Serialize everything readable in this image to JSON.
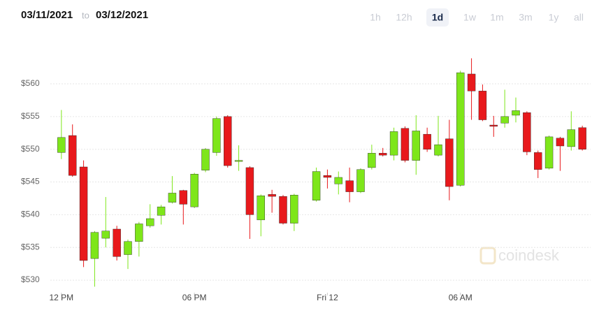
{
  "header": {
    "from": "03/11/2021",
    "to_word": "to",
    "to": "03/12/2021",
    "ranges": [
      {
        "label": "1h"
      },
      {
        "label": "12h"
      },
      {
        "label": "1d",
        "selected": true
      },
      {
        "label": "1w"
      },
      {
        "label": "1m"
      },
      {
        "label": "3m"
      },
      {
        "label": "1y"
      },
      {
        "label": "all"
      }
    ]
  },
  "chart_data": {
    "type": "candlestick",
    "watermark": "coindesk",
    "up_color": "#7ee61a",
    "down_color": "#e8191c",
    "grid": true,
    "ylim": [
      528,
      566
    ],
    "yticks": [
      {
        "value": 530,
        "label": "$530"
      },
      {
        "value": 535,
        "label": "$535"
      },
      {
        "value": 540,
        "label": "$540"
      },
      {
        "value": 545,
        "label": "$545"
      },
      {
        "value": 550,
        "label": "$550"
      },
      {
        "value": 555,
        "label": "$555"
      },
      {
        "value": 560,
        "label": "$560"
      }
    ],
    "xlim": [
      -1,
      48
    ],
    "xticks": [
      {
        "value": 0,
        "label": "12 PM"
      },
      {
        "value": 12,
        "label": "06 PM"
      },
      {
        "value": 24,
        "label": "Fri 12"
      },
      {
        "value": 36,
        "label": "06 AM"
      }
    ],
    "open": [
      549.5,
      552.1,
      547.3,
      533.3,
      536.4,
      537.8,
      533.9,
      535.9,
      538.3,
      539.9,
      541.9,
      543.7,
      541.2,
      546.8,
      549.5,
      555,
      548.3,
      547.2,
      539.2,
      543.1,
      542.8,
      538.7,
      null,
      542.2,
      546,
      544.7,
      545.2,
      543.5,
      547.2,
      549.4,
      549.1,
      553.2,
      548.3,
      552.3,
      549.1,
      551.6,
      544.5,
      561.5,
      558.9,
      553.7,
      554,
      555.2,
      555.6,
      549.5,
      547.1,
      551.7,
      550.4,
      553.3
    ],
    "high": [
      556,
      553.8,
      548.3,
      537.5,
      542.7,
      538.3,
      536.2,
      538.9,
      541.6,
      541.5,
      545.9,
      543.8,
      546.4,
      550.2,
      555,
      555.2,
      550.6,
      547.4,
      543.1,
      543.8,
      543,
      543.2,
      null,
      547.2,
      546.9,
      546.6,
      547.2,
      547.1,
      550.7,
      550.2,
      553.3,
      553.5,
      555.2,
      553.3,
      555.1,
      554.5,
      562,
      563.9,
      559.9,
      555.1,
      559.1,
      557.9,
      555.8,
      549.8,
      552.1,
      551.9,
      555.8,
      553.6
    ],
    "low": [
      548.5,
      545.8,
      532,
      529,
      535,
      533,
      531.7,
      533.6,
      538,
      538.5,
      541.7,
      538.5,
      541,
      546.5,
      549,
      547.2,
      546.7,
      536.3,
      536.7,
      540.3,
      538.5,
      537.5,
      null,
      542,
      544,
      543.1,
      541.9,
      543.3,
      546.9,
      548.9,
      548.3,
      548,
      546.1,
      549.6,
      548.9,
      542.2,
      544.3,
      554.5,
      554.3,
      551.9,
      553.3,
      554.1,
      549.1,
      545.6,
      546.9,
      546.7,
      549.8,
      549.8
    ],
    "close": [
      551.8,
      546,
      533,
      537.3,
      537.5,
      533.6,
      535.9,
      538.6,
      539.4,
      541.2,
      543.3,
      541.6,
      546.2,
      550,
      554.7,
      547.5,
      548.3,
      540,
      542.9,
      542.8,
      538.7,
      543,
      null,
      546.6,
      545.7,
      545.7,
      543.5,
      546.9,
      549.4,
      549.1,
      552.7,
      548.3,
      552.8,
      550,
      550.7,
      544.3,
      561.7,
      558.9,
      554.5,
      553.5,
      555,
      555.9,
      549.6,
      546.9,
      551.9,
      550.5,
      553,
      550
    ]
  }
}
